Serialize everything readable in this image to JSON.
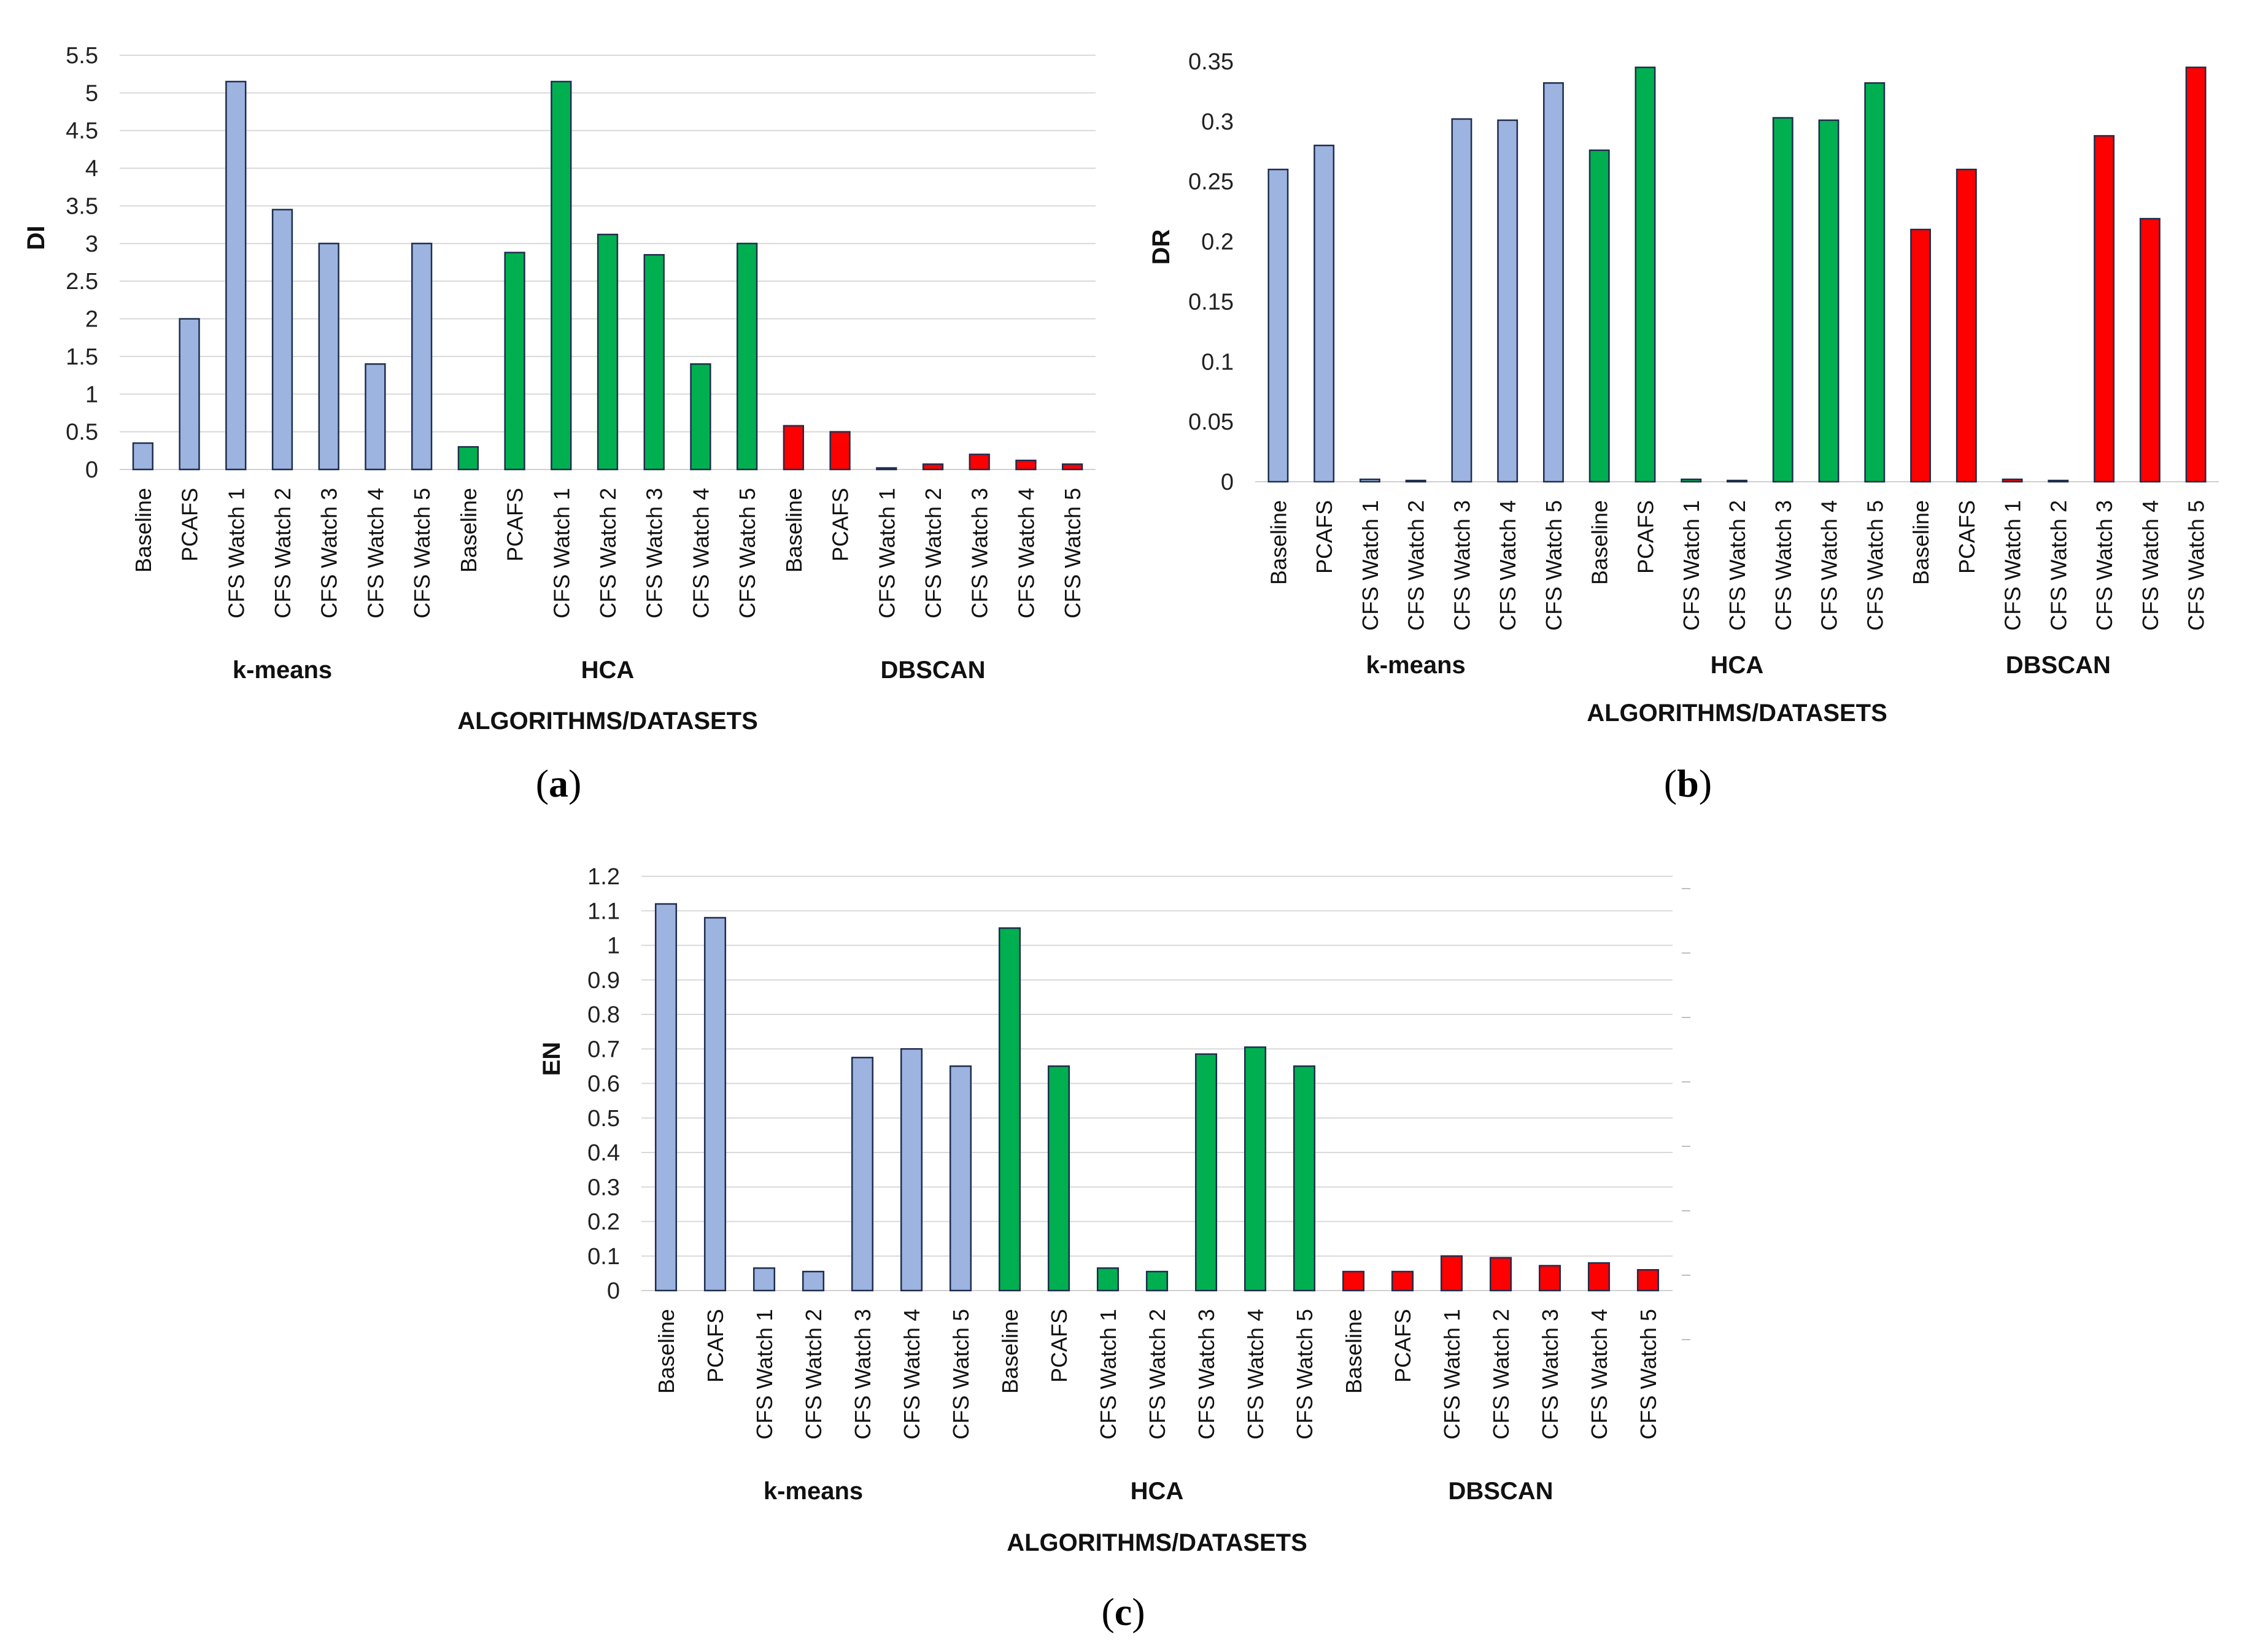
{
  "figure": {
    "panels": [
      {
        "caption_open": "(",
        "caption_letter": "a",
        "caption_close": ")"
      },
      {
        "caption_open": "(",
        "caption_letter": "b",
        "caption_close": ")"
      },
      {
        "caption_open": "(",
        "caption_letter": "c",
        "caption_close": ")"
      }
    ]
  },
  "colors": {
    "k-means": "#9DB3E0",
    "HCA": "#00B050",
    "DBSCAN": "#FF0000",
    "grid": "#D9D9D9",
    "bar_stroke": "#1F2D4D"
  },
  "chart_data": [
    {
      "type": "bar",
      "ylabel": "DI",
      "xlabel": "ALGORITHMS/DATASETS",
      "ylim": [
        0,
        5.5
      ],
      "yticks": [
        "0",
        "0.5",
        "1",
        "1.5",
        "2",
        "2.5",
        "3",
        "3.5",
        "4",
        "4.5",
        "5",
        "5.5"
      ],
      "ytick_values": [
        0,
        0.5,
        1,
        1.5,
        2,
        2.5,
        3,
        3.5,
        4,
        4.5,
        5,
        5.5
      ],
      "grid": true,
      "groups": [
        {
          "name": "k-means",
          "categories": [
            "Baseline",
            "PCAFS",
            "CFS Watch 1",
            "CFS Watch 2",
            "CFS Watch 3",
            "CFS Watch 4",
            "CFS Watch 5"
          ],
          "values": [
            0.35,
            2.0,
            5.15,
            3.45,
            3.0,
            1.4,
            3.0
          ]
        },
        {
          "name": "HCA",
          "categories": [
            "Baseline",
            "PCAFS",
            "CFS Watch 1",
            "CFS Watch 2",
            "CFS Watch 3",
            "CFS Watch 4",
            "CFS Watch 5"
          ],
          "values": [
            0.3,
            2.88,
            5.15,
            3.12,
            2.85,
            1.4,
            3.0
          ]
        },
        {
          "name": "DBSCAN",
          "categories": [
            "Baseline",
            "PCAFS",
            "CFS Watch 1",
            "CFS Watch 2",
            "CFS Watch 3",
            "CFS Watch 4",
            "CFS Watch 5"
          ],
          "values": [
            0.58,
            0.5,
            0.02,
            0.07,
            0.2,
            0.12,
            0.07
          ]
        }
      ]
    },
    {
      "type": "bar",
      "ylabel": "DR",
      "xlabel": "ALGORITHMS/DATASETS",
      "ylim": [
        0,
        0.35
      ],
      "yticks": [
        "0",
        "0.05",
        "0.1",
        "0.15",
        "0.2",
        "0.25",
        "0.3",
        "0.35"
      ],
      "ytick_values": [
        0,
        0.05,
        0.1,
        0.15,
        0.2,
        0.25,
        0.3,
        0.35
      ],
      "grid": false,
      "groups": [
        {
          "name": "k-means",
          "categories": [
            "Baseline",
            "PCAFS",
            "CFS Watch 1",
            "CFS Watch 2",
            "CFS Watch 3",
            "CFS Watch 4",
            "CFS Watch 5"
          ],
          "values": [
            0.26,
            0.28,
            0.002,
            0.001,
            0.302,
            0.301,
            0.332
          ]
        },
        {
          "name": "HCA",
          "categories": [
            "Baseline",
            "PCAFS",
            "CFS Watch 1",
            "CFS Watch 2",
            "CFS Watch 3",
            "CFS Watch 4",
            "CFS Watch 5"
          ],
          "values": [
            0.276,
            0.345,
            0.002,
            0.001,
            0.303,
            0.301,
            0.332
          ]
        },
        {
          "name": "DBSCAN",
          "categories": [
            "Baseline",
            "PCAFS",
            "CFS Watch 1",
            "CFS Watch 2",
            "CFS Watch 3",
            "CFS Watch 4",
            "CFS Watch 5"
          ],
          "values": [
            0.21,
            0.26,
            0.002,
            0.001,
            0.288,
            0.219,
            0.345
          ]
        }
      ]
    },
    {
      "type": "bar",
      "ylabel": "EN",
      "xlabel": "ALGORITHMS/DATASETS",
      "ylim": [
        0,
        1.2
      ],
      "yticks": [
        "0",
        "0.1",
        "0.2",
        "0.3",
        "0.4",
        "0.5",
        "0.6",
        "0.7",
        "0.8",
        "0.9",
        "1",
        "1.1",
        "1.2"
      ],
      "ytick_values": [
        0,
        0.1,
        0.2,
        0.3,
        0.4,
        0.5,
        0.6,
        0.7,
        0.8,
        0.9,
        1,
        1.1,
        1.2
      ],
      "grid": true,
      "groups": [
        {
          "name": "k-means",
          "categories": [
            "Baseline",
            "PCAFS",
            "CFS Watch 1",
            "CFS Watch 2",
            "CFS Watch 3",
            "CFS Watch 4",
            "CFS Watch 5"
          ],
          "values": [
            1.12,
            1.08,
            0.065,
            0.055,
            0.675,
            0.7,
            0.65
          ]
        },
        {
          "name": "HCA",
          "categories": [
            "Baseline",
            "PCAFS",
            "CFS Watch 1",
            "CFS Watch 2",
            "CFS Watch 3",
            "CFS Watch 4",
            "CFS Watch 5"
          ],
          "values": [
            1.05,
            0.65,
            0.065,
            0.055,
            0.685,
            0.705,
            0.65
          ]
        },
        {
          "name": "DBSCAN",
          "categories": [
            "Baseline",
            "PCAFS",
            "CFS Watch 1",
            "CFS Watch 2",
            "CFS Watch 3",
            "CFS Watch 4",
            "CFS Watch 5"
          ],
          "values": [
            0.055,
            0.055,
            0.1,
            0.095,
            0.072,
            0.08,
            0.06
          ]
        }
      ]
    }
  ]
}
